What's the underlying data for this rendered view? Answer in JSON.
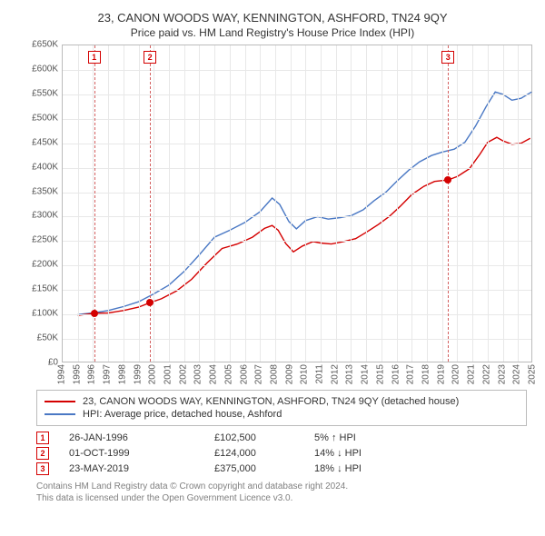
{
  "title_main": "23, CANON WOODS WAY, KENNINGTON, ASHFORD, TN24 9QY",
  "title_sub": "Price paid vs. HM Land Registry's House Price Index (HPI)",
  "y_axis": {
    "min": 0,
    "max": 650000,
    "step": 50000,
    "tick_labels": [
      "£0",
      "£50K",
      "£100K",
      "£150K",
      "£200K",
      "£250K",
      "£300K",
      "£350K",
      "£400K",
      "£450K",
      "£500K",
      "£550K",
      "£600K",
      "£650K"
    ],
    "label_fontsize": 10
  },
  "x_axis": {
    "min": 1994,
    "max": 2025,
    "step": 1,
    "tick_labels": [
      "1994",
      "1995",
      "1996",
      "1997",
      "1998",
      "1999",
      "2000",
      "2001",
      "2002",
      "2003",
      "2004",
      "2005",
      "2006",
      "2007",
      "2008",
      "2009",
      "2010",
      "2011",
      "2012",
      "2013",
      "2014",
      "2015",
      "2016",
      "2017",
      "2018",
      "2019",
      "2020",
      "2021",
      "2022",
      "2023",
      "2024",
      "2025"
    ],
    "label_fontsize": 10
  },
  "colors": {
    "series_property": "#d40000",
    "series_hpi": "#4a78c4",
    "grid": "#e8e8e8",
    "border": "#bbbbbb",
    "marker_fill": "#d40000",
    "dashed_line": "#d46060",
    "text": "#333333",
    "footnote": "#808080",
    "background": "#ffffff"
  },
  "plot": {
    "inner_width": 518,
    "inner_height": 350,
    "line_width": 1.4
  },
  "series_property": [
    [
      1995.0,
      98000
    ],
    [
      1996.07,
      102500
    ],
    [
      1997.0,
      103000
    ],
    [
      1998.0,
      108000
    ],
    [
      1999.0,
      115000
    ],
    [
      1999.75,
      124000
    ],
    [
      2000.5,
      132000
    ],
    [
      2001.5,
      148000
    ],
    [
      2002.5,
      172000
    ],
    [
      2003.5,
      205000
    ],
    [
      2004.5,
      235000
    ],
    [
      2005.5,
      244000
    ],
    [
      2006.5,
      258000
    ],
    [
      2007.3,
      276000
    ],
    [
      2007.8,
      282000
    ],
    [
      2008.2,
      272000
    ],
    [
      2008.7,
      245000
    ],
    [
      2009.2,
      228000
    ],
    [
      2009.8,
      240000
    ],
    [
      2010.5,
      249000
    ],
    [
      2011.0,
      246000
    ],
    [
      2011.7,
      244000
    ],
    [
      2012.5,
      249000
    ],
    [
      2013.3,
      255000
    ],
    [
      2014.0,
      268000
    ],
    [
      2014.8,
      284000
    ],
    [
      2015.5,
      300000
    ],
    [
      2016.2,
      320000
    ],
    [
      2017.0,
      345000
    ],
    [
      2017.8,
      362000
    ],
    [
      2018.5,
      372000
    ],
    [
      2019.39,
      375000
    ],
    [
      2020.0,
      382000
    ],
    [
      2020.8,
      398000
    ],
    [
      2021.5,
      428000
    ],
    [
      2022.0,
      452000
    ],
    [
      2022.6,
      462000
    ],
    [
      2023.0,
      455000
    ],
    [
      2023.6,
      448000
    ],
    [
      2024.2,
      450000
    ],
    [
      2024.8,
      460000
    ]
  ],
  "series_hpi": [
    [
      1995.0,
      100000
    ],
    [
      1996.0,
      103000
    ],
    [
      1997.0,
      108000
    ],
    [
      1998.0,
      116000
    ],
    [
      1999.0,
      126000
    ],
    [
      2000.0,
      142000
    ],
    [
      2001.0,
      160000
    ],
    [
      2002.0,
      188000
    ],
    [
      2003.0,
      222000
    ],
    [
      2004.0,
      258000
    ],
    [
      2005.0,
      272000
    ],
    [
      2006.0,
      288000
    ],
    [
      2007.0,
      310000
    ],
    [
      2007.8,
      338000
    ],
    [
      2008.3,
      325000
    ],
    [
      2008.9,
      290000
    ],
    [
      2009.4,
      275000
    ],
    [
      2010.0,
      292000
    ],
    [
      2010.8,
      300000
    ],
    [
      2011.5,
      295000
    ],
    [
      2012.3,
      298000
    ],
    [
      2013.0,
      302000
    ],
    [
      2013.8,
      314000
    ],
    [
      2014.5,
      332000
    ],
    [
      2015.3,
      350000
    ],
    [
      2016.0,
      372000
    ],
    [
      2016.8,
      395000
    ],
    [
      2017.5,
      412000
    ],
    [
      2018.3,
      425000
    ],
    [
      2019.0,
      432000
    ],
    [
      2019.8,
      438000
    ],
    [
      2020.5,
      452000
    ],
    [
      2021.2,
      485000
    ],
    [
      2021.9,
      525000
    ],
    [
      2022.5,
      555000
    ],
    [
      2023.0,
      550000
    ],
    [
      2023.6,
      538000
    ],
    [
      2024.2,
      542000
    ],
    [
      2024.9,
      555000
    ]
  ],
  "transactions": [
    {
      "index": "1",
      "year_frac": 1996.07,
      "price": 102500,
      "date": "26-JAN-1996",
      "price_str": "£102,500",
      "diff": "5% ↑ HPI"
    },
    {
      "index": "2",
      "year_frac": 1999.75,
      "price": 124000,
      "date": "01-OCT-1999",
      "price_str": "£124,000",
      "diff": "14% ↓ HPI"
    },
    {
      "index": "3",
      "year_frac": 2019.39,
      "price": 375000,
      "date": "23-MAY-2019",
      "price_str": "£375,000",
      "diff": "18% ↓ HPI"
    }
  ],
  "legend": [
    {
      "color": "#d40000",
      "label": "23, CANON WOODS WAY, KENNINGTON, ASHFORD, TN24 9QY (detached house)"
    },
    {
      "color": "#4a78c4",
      "label": "HPI: Average price, detached house, Ashford"
    }
  ],
  "footnote_lines": [
    "Contains HM Land Registry data © Crown copyright and database right 2024.",
    "This data is licensed under the Open Government Licence v3.0."
  ]
}
